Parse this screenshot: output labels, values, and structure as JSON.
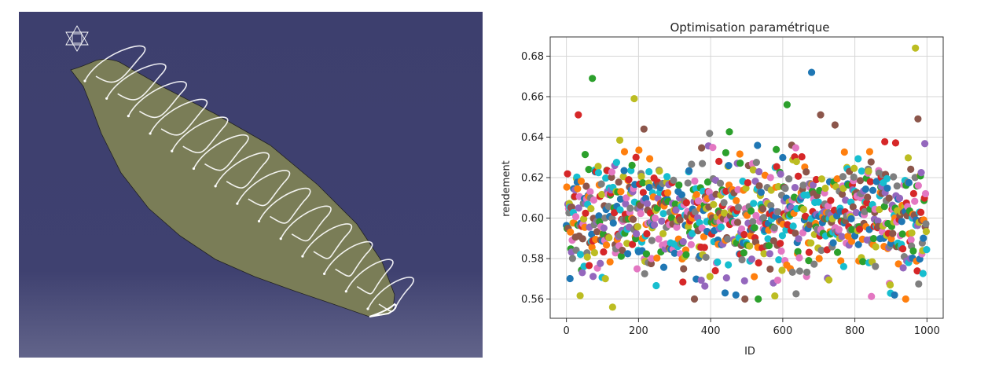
{
  "cad_view": {
    "background_top": "#3d3f6e",
    "background_bottom": "#5f6187",
    "surface_color": "#7c7f5a",
    "curve_color": "#ffffff",
    "icon": "compass-icon"
  },
  "chart_data": {
    "type": "scatter",
    "title": "Optimisation paramétrique",
    "xlabel": "ID",
    "ylabel": "rendement",
    "xlim": [
      -45,
      1045
    ],
    "ylim": [
      0.5505,
      0.6895
    ],
    "xticks": [
      0,
      200,
      400,
      600,
      800,
      1000
    ],
    "xtick_labels": [
      "0",
      "200",
      "400",
      "600",
      "800",
      "1000"
    ],
    "yticks": [
      0.56,
      0.58,
      0.6,
      0.62,
      0.64,
      0.66,
      0.68
    ],
    "ytick_labels": [
      "0.56",
      "0.58",
      "0.60",
      "0.62",
      "0.64",
      "0.66",
      "0.68"
    ],
    "grid": true,
    "n_points": 1000,
    "id_range": [
      0,
      999
    ],
    "value_distribution": {
      "center": 0.601,
      "spread": 0.015,
      "min": 0.556,
      "max": 0.684
    },
    "notable_points": [
      {
        "x": 72,
        "y": 0.669
      },
      {
        "x": 188,
        "y": 0.659
      },
      {
        "x": 128,
        "y": 0.556
      },
      {
        "x": 680,
        "y": 0.672
      },
      {
        "x": 612,
        "y": 0.656
      },
      {
        "x": 968,
        "y": 0.684
      },
      {
        "x": 975,
        "y": 0.649
      },
      {
        "x": 33,
        "y": 0.651
      },
      {
        "x": 215,
        "y": 0.644
      },
      {
        "x": 705,
        "y": 0.651
      },
      {
        "x": 910,
        "y": 0.562
      },
      {
        "x": 470,
        "y": 0.562
      },
      {
        "x": 440,
        "y": 0.563
      }
    ],
    "colors": [
      "#1f77b4",
      "#ff7f0e",
      "#2ca02c",
      "#d62728",
      "#9467bd",
      "#8c564b",
      "#e377c2",
      "#7f7f7f",
      "#bcbd22",
      "#17becf"
    ]
  }
}
